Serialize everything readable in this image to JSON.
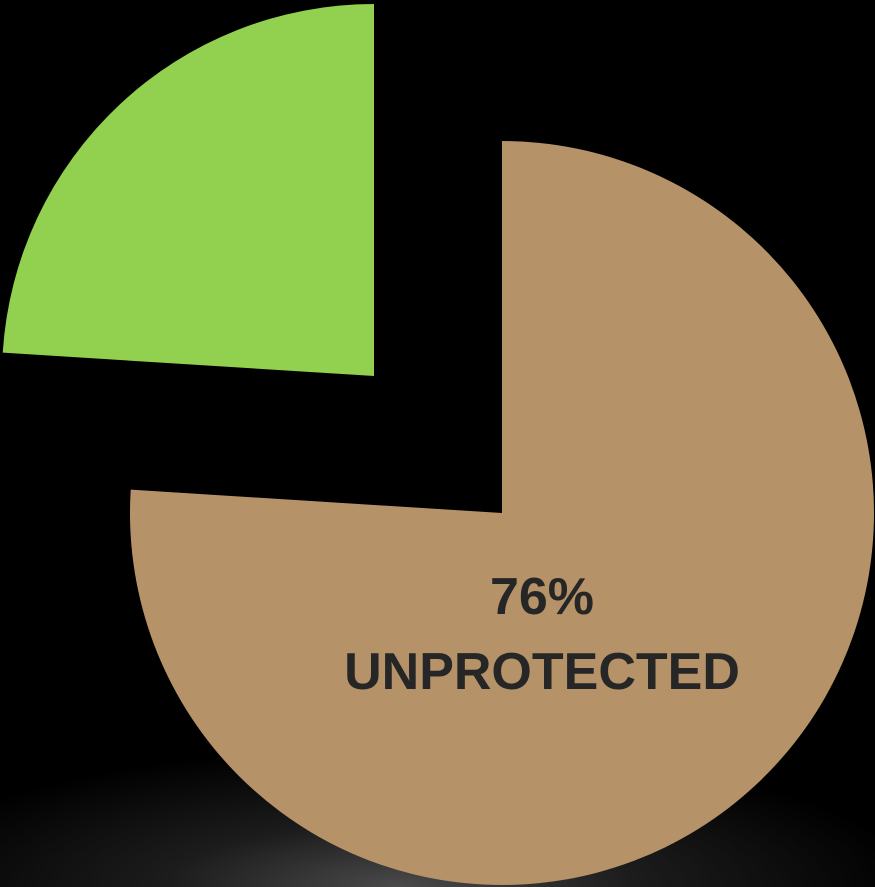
{
  "chart_data": {
    "type": "pie",
    "slices": [
      {
        "value": 76,
        "label": "UNPROTECTED",
        "value_label": "76%",
        "color": "#b59268"
      },
      {
        "value": 24,
        "label": "",
        "value_label": "",
        "color": "#92d050"
      }
    ],
    "exploded": true,
    "legend": "none"
  }
}
